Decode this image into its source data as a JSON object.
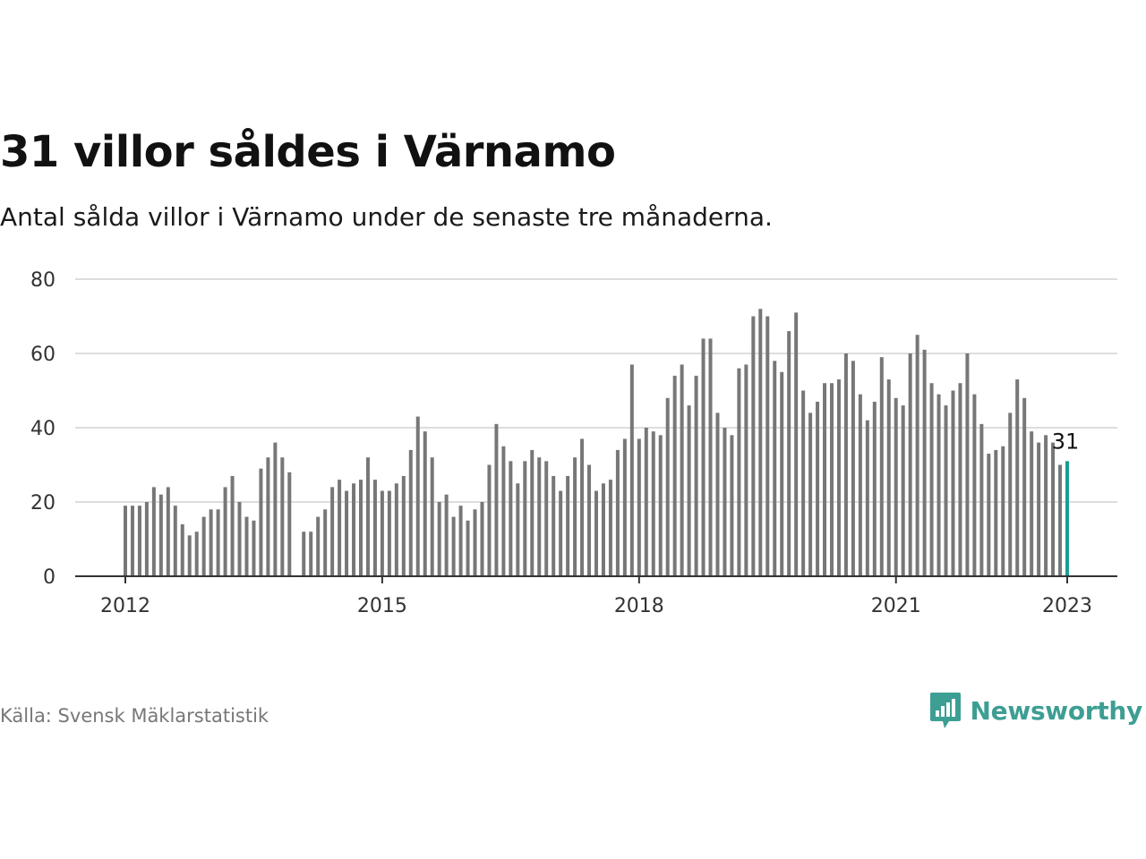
{
  "header": {
    "title": "31 villor såldes i Värnamo",
    "subtitle": "Antal sålda villor i Värnamo under de senaste tre månaderna."
  },
  "footer": {
    "source": "Källa: Svensk Mäklarstatistik",
    "brand": "Newsworthy",
    "brand_icon": "bar-chart-speech-bubble-icon"
  },
  "colors": {
    "bar": "#777777",
    "highlight": "#1a9e93",
    "grid": "#dddddd",
    "axis": "#333333",
    "brand": "#3d9e93"
  },
  "chart_data": {
    "type": "bar",
    "title": "31 villor såldes i Värnamo",
    "xlabel": "",
    "ylabel": "",
    "ylim": [
      0,
      80
    ],
    "yticks": [
      0,
      20,
      40,
      60,
      80
    ],
    "grid": true,
    "start": "2012-01",
    "x_tick_labels": [
      "2012",
      "2015",
      "2018",
      "2021",
      "2023"
    ],
    "highlight_label": "31",
    "series": [
      {
        "values": [
          19,
          19,
          19,
          20,
          24,
          22,
          24,
          19,
          14,
          11,
          12,
          16,
          18,
          18,
          24,
          27,
          20,
          16,
          15,
          29,
          32,
          36,
          32,
          28,
          null,
          12,
          12,
          16,
          18,
          24,
          26,
          23,
          25,
          26,
          32,
          26,
          23,
          23,
          25,
          27,
          34,
          43,
          39,
          32,
          20,
          22,
          16,
          19,
          15,
          18,
          20,
          30,
          41,
          35,
          31,
          25,
          31,
          34,
          32,
          31,
          27,
          23,
          27,
          32,
          37,
          30,
          23,
          25,
          26,
          34,
          37,
          57,
          37,
          40,
          39,
          38,
          48,
          54,
          57,
          46,
          54,
          64,
          64,
          44,
          40,
          38,
          56,
          57,
          70,
          72,
          70,
          58,
          55,
          66,
          71,
          50,
          44,
          47,
          52,
          52,
          53,
          60,
          58,
          49,
          42,
          47,
          59,
          53,
          48,
          46,
          60,
          65,
          61,
          52,
          49,
          46,
          50,
          52,
          60,
          49,
          41,
          33,
          34,
          35,
          44,
          53,
          48,
          39,
          36,
          38,
          36,
          30,
          31
        ]
      }
    ]
  }
}
